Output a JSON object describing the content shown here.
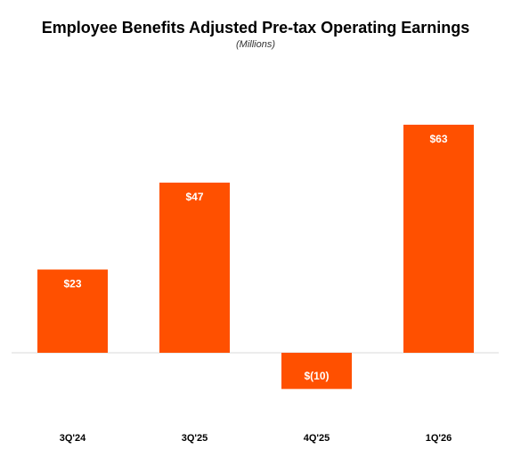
{
  "chart_data": {
    "type": "bar",
    "title": "Employee Benefits Adjusted Pre-tax Operating Earnings",
    "subtitle": "(Millions)",
    "categories": [
      "3Q'24",
      "3Q'25",
      "4Q'25",
      "1Q'26"
    ],
    "values": [
      23,
      47,
      -10,
      63
    ],
    "value_labels": [
      "$23",
      "$47",
      "$(10)",
      "$63"
    ],
    "color": "#ff5000"
  }
}
